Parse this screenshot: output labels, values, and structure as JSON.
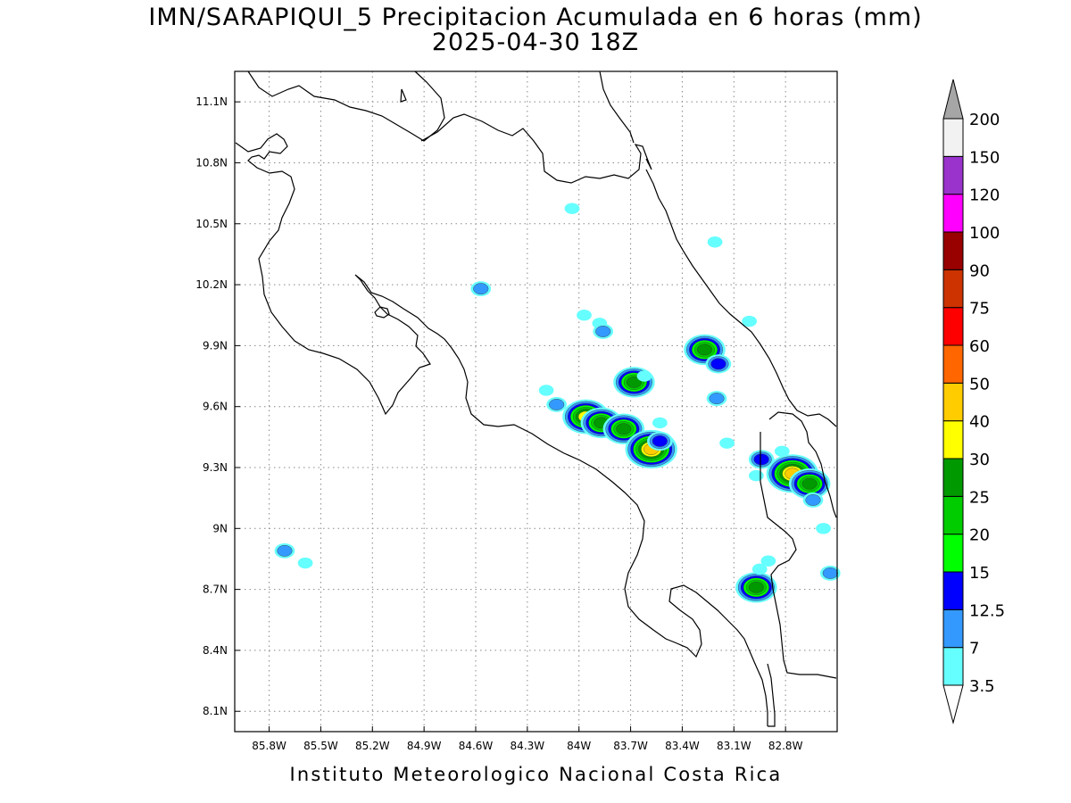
{
  "title": {
    "line1": "IMN/SARAPIQUI_5 Precipitacion Acumulada en 6 horas (mm)",
    "line2": "2025-04-30 18Z"
  },
  "footer": "Instituto Meteorologico Nacional Costa Rica",
  "map": {
    "lon_range": [
      -86.0,
      -82.5
    ],
    "lat_range": [
      8.0,
      11.25
    ],
    "grid": true,
    "lon_ticks": [
      {
        "value": -85.8,
        "label": "85.8W"
      },
      {
        "value": -85.5,
        "label": "85.5W"
      },
      {
        "value": -85.2,
        "label": "85.2W"
      },
      {
        "value": -84.9,
        "label": "84.9W"
      },
      {
        "value": -84.6,
        "label": "84.6W"
      },
      {
        "value": -84.3,
        "label": "84.3W"
      },
      {
        "value": -84.0,
        "label": "84W"
      },
      {
        "value": -83.7,
        "label": "83.7W"
      },
      {
        "value": -83.4,
        "label": "83.4W"
      },
      {
        "value": -83.1,
        "label": "83.1W"
      },
      {
        "value": -82.8,
        "label": "82.8W"
      }
    ],
    "lat_ticks": [
      {
        "value": 11.1,
        "label": "11.1N"
      },
      {
        "value": 10.8,
        "label": "10.8N"
      },
      {
        "value": 10.5,
        "label": "10.5N"
      },
      {
        "value": 10.2,
        "label": "10.2N"
      },
      {
        "value": 9.9,
        "label": "9.9N"
      },
      {
        "value": 9.6,
        "label": "9.6N"
      },
      {
        "value": 9.3,
        "label": "9.3N"
      },
      {
        "value": 9.0,
        "label": "9N"
      },
      {
        "value": 8.7,
        "label": "8.7N"
      },
      {
        "value": 8.4,
        "label": "8.4N"
      },
      {
        "value": 8.1,
        "label": "8.1N"
      }
    ],
    "coastline_color": "#000000",
    "country_border": true,
    "precip_cells": [
      {
        "lon": -84.04,
        "lat": 10.575,
        "value": 3.5
      },
      {
        "lon": -84.57,
        "lat": 10.18,
        "value": 7
      },
      {
        "lon": -83.97,
        "lat": 10.05,
        "value": 3.5
      },
      {
        "lon": -83.88,
        "lat": 10.01,
        "value": 3.5
      },
      {
        "lon": -83.86,
        "lat": 9.97,
        "value": 7
      },
      {
        "lon": -83.68,
        "lat": 9.72,
        "value": 25
      },
      {
        "lon": -83.27,
        "lat": 9.88,
        "value": 25
      },
      {
        "lon": -83.19,
        "lat": 9.81,
        "value": 12.5
      },
      {
        "lon": -83.96,
        "lat": 9.55,
        "value": 30
      },
      {
        "lon": -83.87,
        "lat": 9.52,
        "value": 25
      },
      {
        "lon": -83.74,
        "lat": 9.49,
        "value": 25
      },
      {
        "lon": -83.58,
        "lat": 9.39,
        "value": 40
      },
      {
        "lon": -83.53,
        "lat": 9.43,
        "value": 12.5
      },
      {
        "lon": -83.53,
        "lat": 9.52,
        "value": 3.5
      },
      {
        "lon": -83.2,
        "lat": 9.64,
        "value": 7
      },
      {
        "lon": -84.19,
        "lat": 9.68,
        "value": 3.5
      },
      {
        "lon": -84.13,
        "lat": 9.61,
        "value": 7
      },
      {
        "lon": -83.62,
        "lat": 9.75,
        "value": 3.5
      },
      {
        "lon": -83.01,
        "lat": 10.02,
        "value": 3.5
      },
      {
        "lon": -83.21,
        "lat": 10.41,
        "value": 3.5
      },
      {
        "lon": -83.14,
        "lat": 9.42,
        "value": 3.5
      },
      {
        "lon": -82.94,
        "lat": 9.34,
        "value": 12.5
      },
      {
        "lon": -82.97,
        "lat": 9.26,
        "value": 3.5
      },
      {
        "lon": -82.82,
        "lat": 9.38,
        "value": 3.5
      },
      {
        "lon": -82.76,
        "lat": 9.27,
        "value": 40
      },
      {
        "lon": -82.66,
        "lat": 9.22,
        "value": 25
      },
      {
        "lon": -82.64,
        "lat": 9.14,
        "value": 7
      },
      {
        "lon": -82.58,
        "lat": 9.0,
        "value": 3.5
      },
      {
        "lon": -82.97,
        "lat": 8.71,
        "value": 25
      },
      {
        "lon": -82.95,
        "lat": 8.8,
        "value": 3.5
      },
      {
        "lon": -82.9,
        "lat": 8.84,
        "value": 3.5
      },
      {
        "lon": -82.54,
        "lat": 8.78,
        "value": 7
      },
      {
        "lon": -85.71,
        "lat": 8.89,
        "value": 7
      },
      {
        "lon": -85.59,
        "lat": 8.83,
        "value": 3.5
      }
    ]
  },
  "colorbar": {
    "levels": [
      {
        "label": "3.5",
        "color": "#66ffff"
      },
      {
        "label": "7",
        "color": "#3399ff"
      },
      {
        "label": "12.5",
        "color": "#0000ff"
      },
      {
        "label": "15",
        "color": "#00ff00"
      },
      {
        "label": "20",
        "color": "#00cc00"
      },
      {
        "label": "25",
        "color": "#009900"
      },
      {
        "label": "30",
        "color": "#ffff00"
      },
      {
        "label": "40",
        "color": "#ffcc00"
      },
      {
        "label": "50",
        "color": "#ff6600"
      },
      {
        "label": "60",
        "color": "#ff0000"
      },
      {
        "label": "75",
        "color": "#cc3300"
      },
      {
        "label": "90",
        "color": "#990000"
      },
      {
        "label": "100",
        "color": "#ff00ff"
      },
      {
        "label": "120",
        "color": "#9933cc"
      },
      {
        "label": "150",
        "color": "#f2f2f2"
      },
      {
        "label": "200",
        "color": "#a6a6a6"
      }
    ],
    "bins": [
      "#66ffff",
      "#3399ff",
      "#0000ff",
      "#00ff00",
      "#00cc00",
      "#009900",
      "#ffff00",
      "#ffcc00",
      "#ff6600",
      "#ff0000",
      "#cc3300",
      "#990000",
      "#ff00ff",
      "#9933cc",
      "#f2f2f2"
    ],
    "under_color": "#ffffff",
    "over_color": "#a6a6a6"
  }
}
